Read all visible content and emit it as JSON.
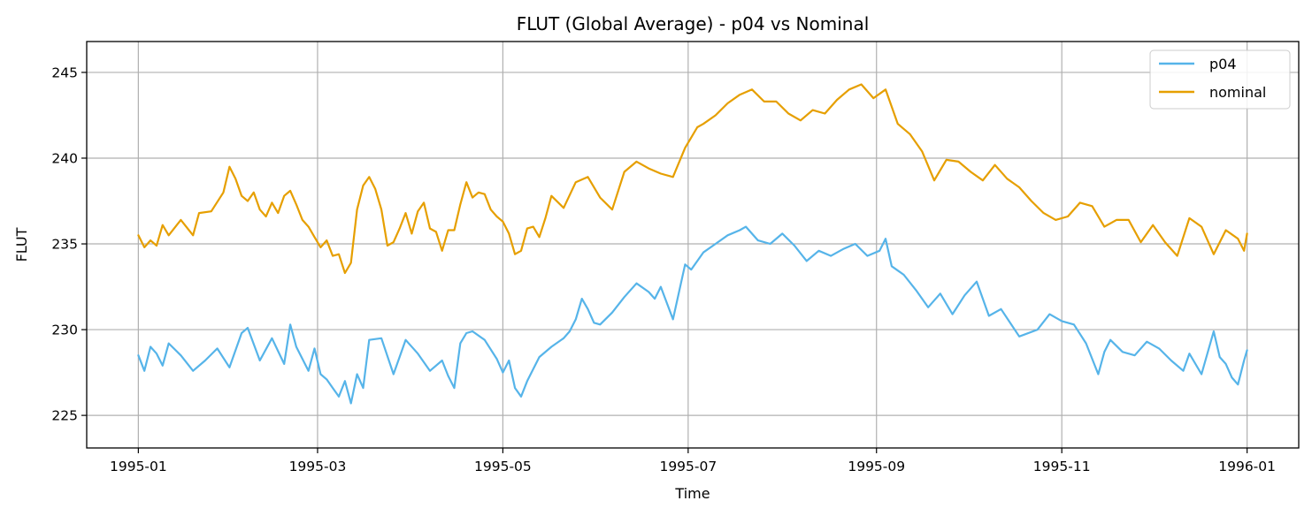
{
  "chart_data": {
    "type": "line",
    "title": "FLUT (Global Average) - p04 vs Nominal",
    "xlabel": "Time",
    "ylabel": "FLUT",
    "grid": true,
    "legend_position": "top-right",
    "xlim": [
      -17,
      382
    ],
    "ylim": [
      223.1,
      246.8
    ],
    "xticks": [
      {
        "day": 0,
        "label": "1995-01"
      },
      {
        "day": 59,
        "label": "1995-03"
      },
      {
        "day": 120,
        "label": "1995-05"
      },
      {
        "day": 181,
        "label": "1995-07"
      },
      {
        "day": 243,
        "label": "1995-09"
      },
      {
        "day": 304,
        "label": "1995-11"
      },
      {
        "day": 365,
        "label": "1996-01"
      }
    ],
    "yticks": [
      {
        "value": 225,
        "label": "225"
      },
      {
        "value": 230,
        "label": "230"
      },
      {
        "value": 235,
        "label": "235"
      },
      {
        "value": 240,
        "label": "240"
      },
      {
        "value": 245,
        "label": "245"
      }
    ],
    "series": [
      {
        "name": "p04",
        "color": "#56B4E9",
        "x": [
          0,
          2,
          4,
          6,
          8,
          10,
          14,
          18,
          22,
          26,
          30,
          34,
          36,
          40,
          44,
          48,
          50,
          52,
          56,
          58,
          60,
          62,
          64,
          66,
          68,
          70,
          72,
          74,
          76,
          80,
          84,
          88,
          92,
          96,
          100,
          102,
          104,
          106,
          108,
          110,
          114,
          118,
          120,
          122,
          124,
          126,
          128,
          132,
          136,
          140,
          142,
          144,
          146,
          148,
          150,
          152,
          156,
          160,
          164,
          168,
          170,
          172,
          176,
          180,
          182,
          186,
          190,
          194,
          198,
          200,
          204,
          208,
          212,
          216,
          220,
          224,
          228,
          232,
          236,
          240,
          244,
          246,
          248,
          252,
          256,
          260,
          264,
          268,
          272,
          276,
          280,
          284,
          290,
          296,
          300,
          304,
          308,
          312,
          316,
          318,
          320,
          324,
          328,
          332,
          336,
          340,
          344,
          346,
          350,
          354,
          356,
          358,
          360,
          362,
          364,
          365
        ],
        "y": [
          228.5,
          227.6,
          229.0,
          228.6,
          227.9,
          229.2,
          228.5,
          227.6,
          228.2,
          228.9,
          227.8,
          229.8,
          230.1,
          228.2,
          229.5,
          228.0,
          230.3,
          229.0,
          227.6,
          228.9,
          227.4,
          227.1,
          226.6,
          226.1,
          227.0,
          225.7,
          227.4,
          226.6,
          229.4,
          229.5,
          227.4,
          229.4,
          228.6,
          227.6,
          228.2,
          227.3,
          226.6,
          229.2,
          229.8,
          229.9,
          229.4,
          228.3,
          227.5,
          228.2,
          226.6,
          226.1,
          227.0,
          228.4,
          229.0,
          229.5,
          229.9,
          230.6,
          231.8,
          231.2,
          230.4,
          230.3,
          231.0,
          231.9,
          232.7,
          232.2,
          231.8,
          232.5,
          230.6,
          233.8,
          233.5,
          234.5,
          235.0,
          235.5,
          235.8,
          236.0,
          235.2,
          235.0,
          235.6,
          234.9,
          234.0,
          234.6,
          234.3,
          234.7,
          235.0,
          234.3,
          234.6,
          235.3,
          233.7,
          233.2,
          232.3,
          231.3,
          232.1,
          230.9,
          232.0,
          232.8,
          230.8,
          231.2,
          229.6,
          230.0,
          230.9,
          230.5,
          230.3,
          229.2,
          227.4,
          228.7,
          229.4,
          228.7,
          228.5,
          229.3,
          228.9,
          228.2,
          227.6,
          228.6,
          227.4,
          229.9,
          228.4,
          228.0,
          227.2,
          226.8,
          228.2,
          228.8
        ]
      },
      {
        "name": "nominal",
        "color": "#E69F00",
        "x": [
          0,
          2,
          4,
          6,
          8,
          10,
          14,
          18,
          20,
          24,
          28,
          30,
          32,
          34,
          36,
          38,
          40,
          42,
          44,
          46,
          48,
          50,
          52,
          54,
          56,
          58,
          60,
          62,
          64,
          66,
          68,
          70,
          72,
          74,
          76,
          78,
          80,
          82,
          84,
          86,
          88,
          90,
          92,
          94,
          96,
          98,
          100,
          102,
          104,
          106,
          108,
          110,
          112,
          114,
          116,
          118,
          120,
          122,
          124,
          126,
          128,
          130,
          132,
          134,
          136,
          140,
          144,
          148,
          152,
          156,
          160,
          164,
          168,
          172,
          176,
          180,
          182,
          184,
          186,
          190,
          194,
          198,
          202,
          206,
          210,
          214,
          218,
          222,
          226,
          230,
          234,
          238,
          242,
          246,
          250,
          254,
          258,
          262,
          266,
          270,
          274,
          278,
          282,
          286,
          290,
          294,
          298,
          302,
          306,
          310,
          314,
          318,
          322,
          326,
          330,
          334,
          338,
          342,
          346,
          350,
          354,
          358,
          362,
          364,
          365
        ],
        "y": [
          235.5,
          234.8,
          235.2,
          234.9,
          236.1,
          235.5,
          236.4,
          235.5,
          236.8,
          236.9,
          238.0,
          239.5,
          238.8,
          237.8,
          237.5,
          238.0,
          237.0,
          236.6,
          237.4,
          236.8,
          237.8,
          238.1,
          237.3,
          236.4,
          236.0,
          235.4,
          234.8,
          235.2,
          234.3,
          234.4,
          233.3,
          233.9,
          237.0,
          238.4,
          238.9,
          238.2,
          237.0,
          234.9,
          235.1,
          235.9,
          236.8,
          235.6,
          236.9,
          237.4,
          235.9,
          235.7,
          234.6,
          235.8,
          235.8,
          237.3,
          238.6,
          237.7,
          238.0,
          237.9,
          237.0,
          236.6,
          236.3,
          235.6,
          234.4,
          234.6,
          235.9,
          236.0,
          235.4,
          236.5,
          237.8,
          237.1,
          238.6,
          238.9,
          237.7,
          237.0,
          239.2,
          239.8,
          239.4,
          239.1,
          238.9,
          240.6,
          241.2,
          241.8,
          242.0,
          242.5,
          243.2,
          243.7,
          244.0,
          243.3,
          243.3,
          242.6,
          242.2,
          242.8,
          242.6,
          243.4,
          244.0,
          244.3,
          243.5,
          244.0,
          242.0,
          241.4,
          240.4,
          238.7,
          239.9,
          239.8,
          239.2,
          238.7,
          239.6,
          238.8,
          238.3,
          237.5,
          236.8,
          236.4,
          236.6,
          237.4,
          237.2,
          236.0,
          236.4,
          236.4,
          235.1,
          236.1,
          235.1,
          234.3,
          236.5,
          236.0,
          234.4,
          235.8,
          235.3,
          234.6,
          235.6
        ]
      }
    ]
  }
}
